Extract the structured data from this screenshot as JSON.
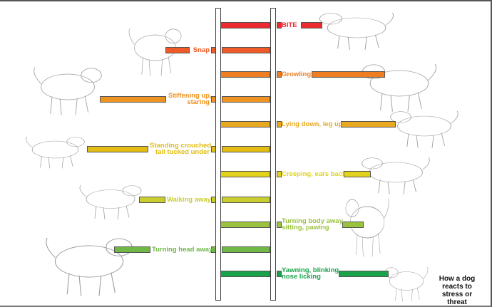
{
  "rungs": [
    {
      "label": "BITE",
      "side": "right",
      "color": "#ec2a30"
    },
    {
      "label": "Snap",
      "side": "left",
      "color": "#f05a28"
    },
    {
      "label": "Growling",
      "side": "right",
      "color": "#ef7e23"
    },
    {
      "label": "Stiffening up,\nstaring",
      "side": "left",
      "color": "#ee9322"
    },
    {
      "label": "Lying down, leg up",
      "side": "right",
      "color": "#e8a920"
    },
    {
      "label": "Standing crouched,\ntail tucked under",
      "side": "left",
      "color": "#e3bd13"
    },
    {
      "label": "Creeping, ears back",
      "side": "right",
      "color": "#e3d21a"
    },
    {
      "label": "Walking away",
      "side": "left",
      "color": "#c9cd2e"
    },
    {
      "label": "Turning body away,\nsitting, pawing",
      "side": "right",
      "color": "#9ac23e"
    },
    {
      "label": "Turning head away",
      "side": "left",
      "color": "#6fb846"
    },
    {
      "label": "Yawning, blinking,\nnose licking",
      "side": "right",
      "color": "#19a34b"
    }
  ],
  "caption": "How a dog reacts to stress or threat"
}
